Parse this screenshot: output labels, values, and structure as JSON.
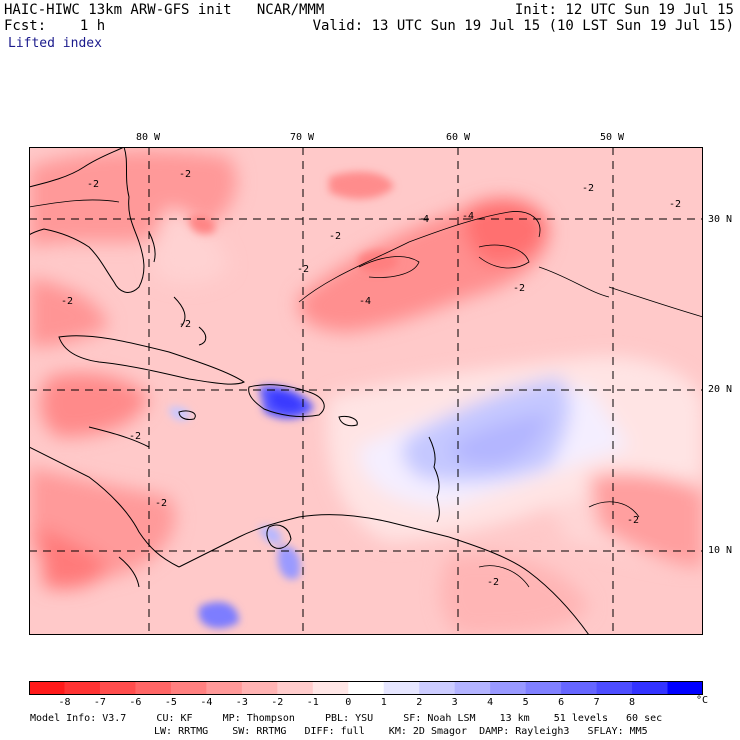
{
  "header": {
    "title": "HAIC-HIWC 13km ARW-GFS init   NCAR/MMM",
    "init": "Init: 12 UTC Sun 19 Jul 15",
    "fcst": "Fcst:    1 h",
    "valid": "Valid: 13 UTC Sun 19 Jul 15 (10 LST Sun 19 Jul 15)",
    "field": "Lifted index"
  },
  "map": {
    "lon_labels": [
      "80 W",
      "70 W",
      "60 W",
      "50 W"
    ],
    "lat_labels": [
      "30 N",
      "20 N",
      "10 N"
    ],
    "contour_labels": [
      "-2",
      "-4"
    ]
  },
  "colorbar": {
    "ticks": [
      "-8",
      "-7",
      "-6",
      "-5",
      "-4",
      "-3",
      "-2",
      "-1",
      "0",
      "1",
      "2",
      "3",
      "4",
      "5",
      "6",
      "7",
      "8"
    ],
    "unit": "°C",
    "colors": [
      "#ff1a1a",
      "#ff3333",
      "#ff4d4d",
      "#ff6666",
      "#ff8080",
      "#ff9999",
      "#ffb3b3",
      "#ffcccc",
      "#ffe6e6",
      "#ffffff",
      "#e6e6ff",
      "#ccccff",
      "#b3b3ff",
      "#9999ff",
      "#8080ff",
      "#6666ff",
      "#4d4dff",
      "#3333ff",
      "#0000ff"
    ]
  },
  "footer": {
    "line1": "Model Info: V3.7     CU: KF     MP: Thompson     PBL: YSU     SF: Noah LSM    13 km    51 levels   60 sec",
    "line2": "LW: RRTMG    SW: RRTMG   DIFF: full    KM: 2D Smagor  DAMP: Rayleigh3   SFLAY: MM5"
  }
}
